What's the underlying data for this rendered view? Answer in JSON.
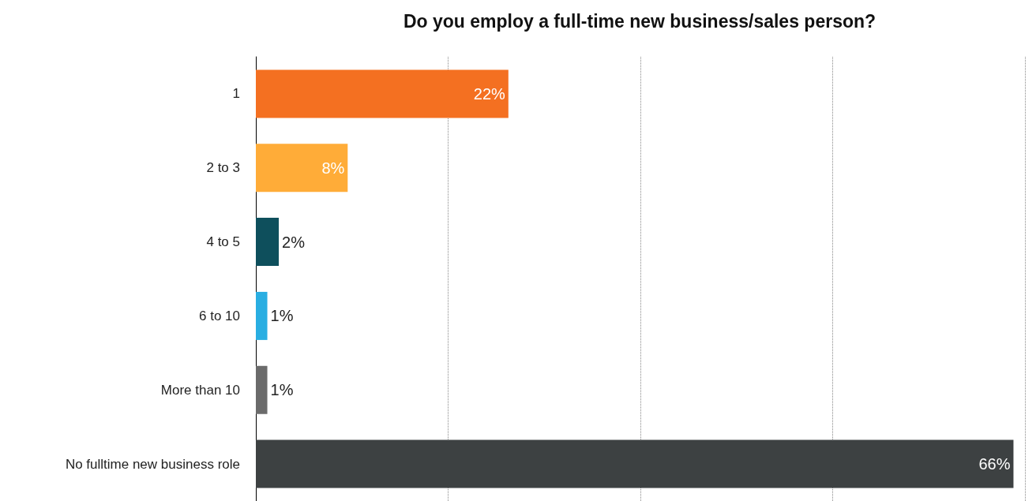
{
  "chart_data": {
    "type": "bar",
    "orientation": "horizontal",
    "title": "Do you employ a full-time new business/sales person?",
    "categories": [
      "1",
      "2 to 3",
      "4 to 5",
      "6 to 10",
      "More than 10",
      "No fulltime new business role"
    ],
    "values": [
      22,
      8,
      2,
      1,
      1,
      66
    ],
    "colors": [
      "#f47021",
      "#ffac38",
      "#0e4f5c",
      "#29aee2",
      "#6b6b6b",
      "#3d4142"
    ],
    "value_labels": [
      "22%",
      "8%",
      "2%",
      "1%",
      "1%",
      "66%"
    ],
    "xlim": [
      0,
      67
    ],
    "xticks": [
      {
        "value": 0,
        "label": null
      },
      {
        "value": 16.75,
        "label": null
      },
      {
        "value": 33.5,
        "label": null
      },
      {
        "value": 50.25,
        "label": null
      },
      {
        "value": 67,
        "label": null
      }
    ],
    "grid": "x",
    "tick_labels": "y"
  }
}
